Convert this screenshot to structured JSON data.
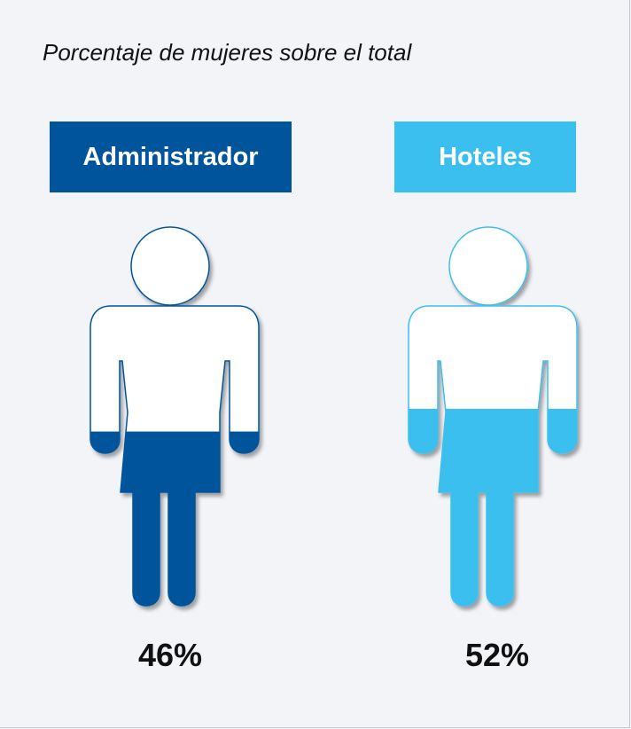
{
  "title": "Porcentaje de mujeres sobre el total",
  "chart_data": {
    "type": "pictograph",
    "title": "Porcentaje de mujeres sobre el total",
    "categories": [
      "Administrador",
      "Hoteles"
    ],
    "values": [
      46,
      52
    ],
    "value_labels": [
      "46%",
      "52%"
    ],
    "unit": "%",
    "colors": [
      "#00549c",
      "#3abfef"
    ]
  }
}
